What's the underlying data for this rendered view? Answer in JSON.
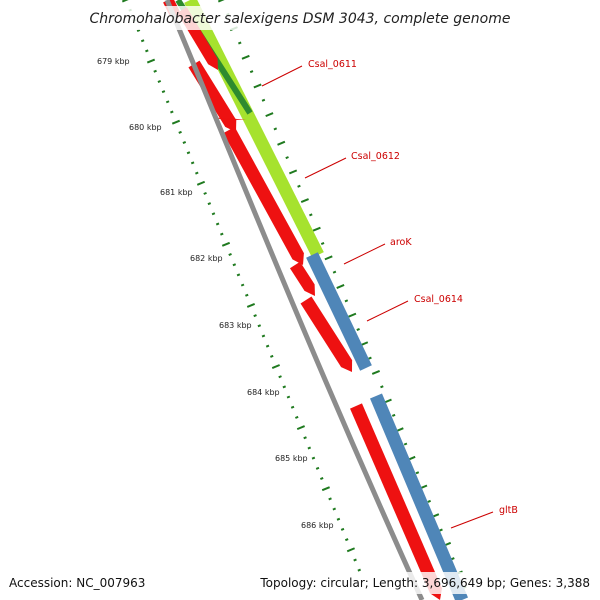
{
  "title": "Chromohalobacter salexigens DSM 3043, complete genome",
  "accession_label": "Accession: NC_007963",
  "topology_label": "Topology: circular; Length: 3,696,649 bp; Genes: 3,388",
  "colors": {
    "backbone": "#8c8c8c",
    "cds_red": "#ee1111",
    "green_track": "#a6e22e",
    "dark_green_track": "#2e8b2e",
    "blue_track": "#4f86b8",
    "tick_green": "#1f7a1f",
    "label_red": "#cc0000"
  },
  "kbp_ticks": [
    {
      "label": "679 kbp"
    },
    {
      "label": "680 kbp"
    },
    {
      "label": "681 kbp"
    },
    {
      "label": "682 kbp"
    },
    {
      "label": "683 kbp"
    },
    {
      "label": "684 kbp"
    },
    {
      "label": "685 kbp"
    },
    {
      "label": "686 kbp"
    }
  ],
  "gene_labels": [
    {
      "name": "Csal_0611"
    },
    {
      "name": "Csal_0612"
    },
    {
      "name": "aroK"
    },
    {
      "name": "Csal_0614"
    },
    {
      "name": "gltB"
    }
  ]
}
